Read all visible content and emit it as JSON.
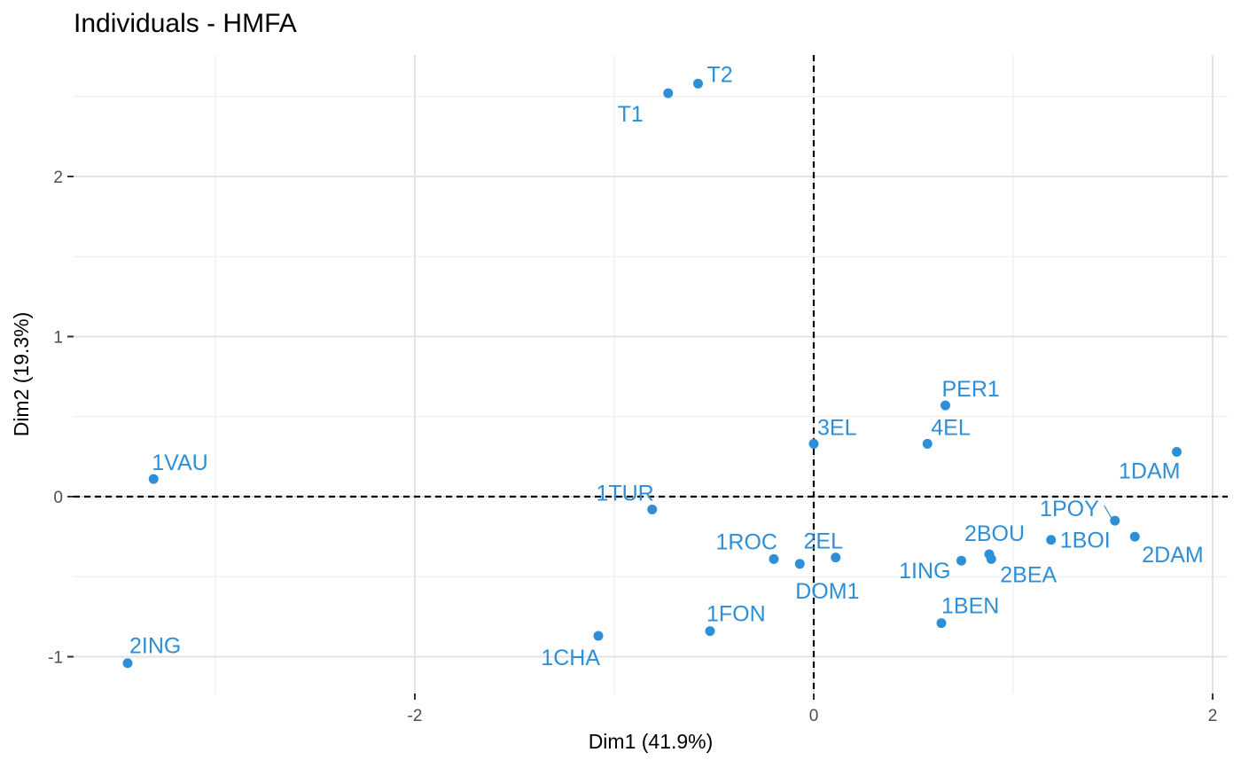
{
  "chart_data": {
    "type": "scatter",
    "title": "Individuals - HMFA",
    "xlabel": "Dim1 (41.9%)",
    "ylabel": "Dim2 (19.3%)",
    "xlim": [
      -3.7,
      2.07
    ],
    "ylim": [
      -1.22,
      2.77
    ],
    "xticks": [
      -2,
      0,
      2
    ],
    "yticks": [
      -1,
      0,
      1,
      2
    ],
    "xtick_labels": [
      "-2",
      "0",
      "2"
    ],
    "ytick_labels": [
      "-1",
      "0",
      "1",
      "2"
    ],
    "grid": true,
    "reference_lines": [
      "x = 0 (dashed)",
      "y = 0 (dashed)"
    ],
    "point_color": "#2E8FD6",
    "points": [
      {
        "label": "T2",
        "x": -0.58,
        "y": 2.58
      },
      {
        "label": "T1",
        "x": -0.73,
        "y": 2.52
      },
      {
        "label": "PER1",
        "x": 0.66,
        "y": 0.57
      },
      {
        "label": "3EL",
        "x": 0.0,
        "y": 0.33
      },
      {
        "label": "4EL",
        "x": 0.57,
        "y": 0.33
      },
      {
        "label": "1DAM",
        "x": 1.82,
        "y": 0.28
      },
      {
        "label": "1VAU",
        "x": -3.31,
        "y": 0.11
      },
      {
        "label": "1TUR",
        "x": -0.81,
        "y": -0.08
      },
      {
        "label": "1POY",
        "x": 1.51,
        "y": -0.15
      },
      {
        "label": "1BOI",
        "x": 1.19,
        "y": -0.27
      },
      {
        "label": "2DAM",
        "x": 1.61,
        "y": -0.25
      },
      {
        "label": "2BOU",
        "x": 0.88,
        "y": -0.36
      },
      {
        "label": "2BEA",
        "x": 0.89,
        "y": -0.39
      },
      {
        "label": "1ING",
        "x": 0.74,
        "y": -0.4
      },
      {
        "label": "1ROC",
        "x": -0.2,
        "y": -0.39
      },
      {
        "label": "2EL",
        "x": 0.11,
        "y": -0.38
      },
      {
        "label": "DOM1",
        "x": -0.07,
        "y": -0.42
      },
      {
        "label": "1FON",
        "x": -0.52,
        "y": -0.84
      },
      {
        "label": "1BEN",
        "x": 0.64,
        "y": -0.79
      },
      {
        "label": "1CHA",
        "x": -1.08,
        "y": -0.87
      },
      {
        "label": "2ING",
        "x": -3.44,
        "y": -1.04
      }
    ]
  }
}
